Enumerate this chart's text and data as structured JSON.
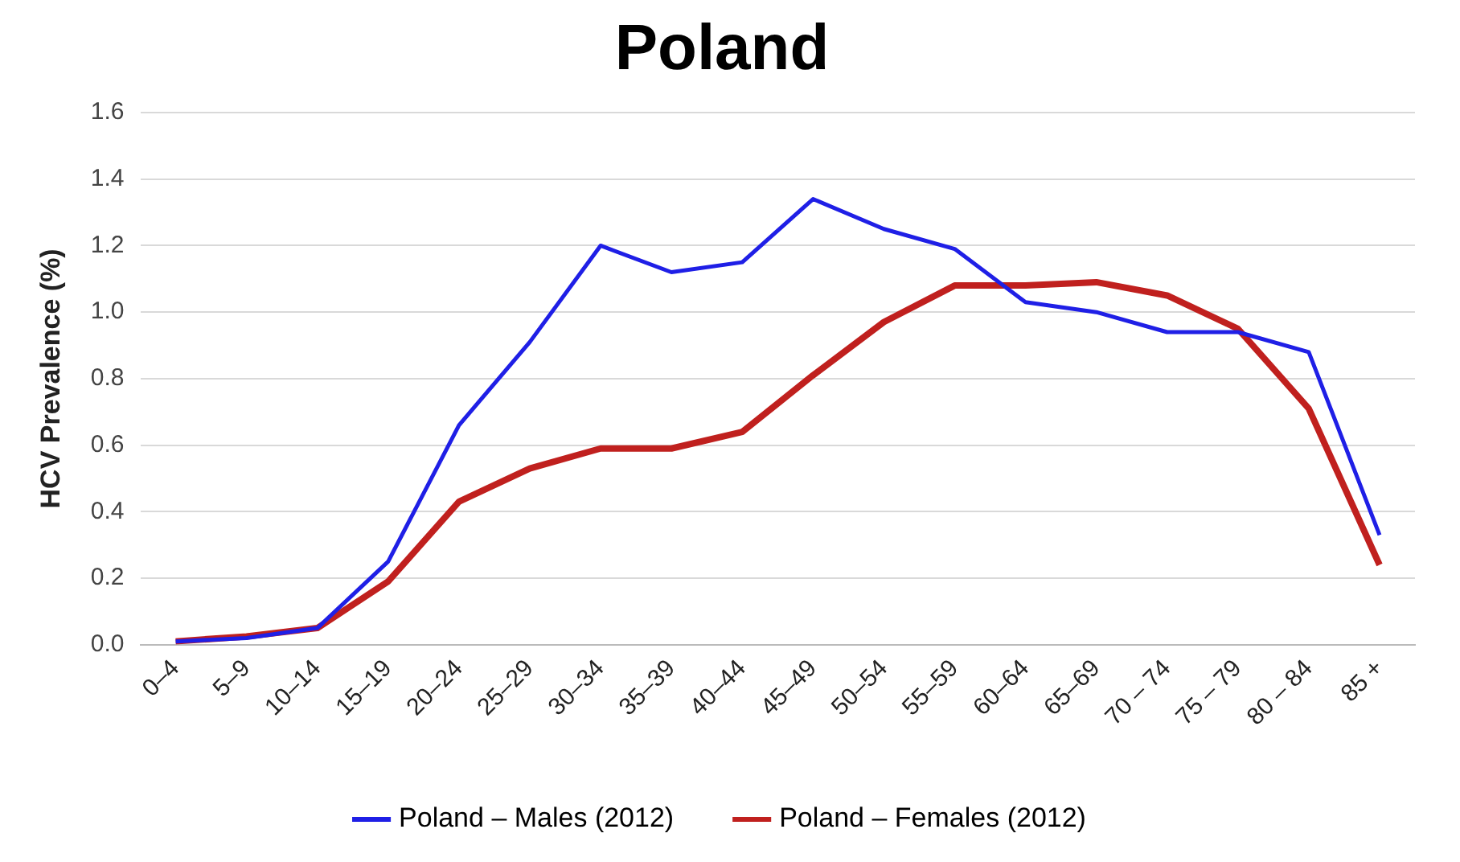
{
  "chart_data": {
    "type": "line",
    "title": "Poland",
    "ylabel": "HCV Prevalence (%)",
    "categories": [
      "0–4",
      "5–9",
      "10–14",
      "15–19",
      "20–24",
      "25–29",
      "30–34",
      "35–39",
      "40–44",
      "45–49",
      "50–54",
      "55–59",
      "60–64",
      "65–69",
      "70 – 74",
      "75 – 79",
      "80 – 84",
      "85 +"
    ],
    "series": [
      {
        "name": "Poland – Males (2012)",
        "color": "#1f1fe6",
        "values": [
          0.01,
          0.02,
          0.05,
          0.25,
          0.66,
          0.91,
          1.2,
          1.12,
          1.15,
          1.34,
          1.25,
          1.19,
          1.03,
          1.0,
          0.94,
          0.94,
          0.88,
          0.33
        ]
      },
      {
        "name": "Poland – Females (2012)",
        "color": "#c0201e",
        "values": [
          0.01,
          0.025,
          0.05,
          0.19,
          0.43,
          0.53,
          0.59,
          0.59,
          0.64,
          0.81,
          0.97,
          1.08,
          1.08,
          1.09,
          1.05,
          0.95,
          0.71,
          0.24
        ]
      }
    ],
    "ylim": [
      0,
      1.6
    ],
    "yticks": [
      {
        "value": 0,
        "label": "0.0"
      },
      0.2,
      0.4,
      0.6,
      0.8,
      {
        "value": 1,
        "label": "1.0"
      },
      1.2,
      1.4,
      1.6
    ],
    "grid": "y",
    "legend": "bottom",
    "marker": "none",
    "line_style": "solid"
  }
}
